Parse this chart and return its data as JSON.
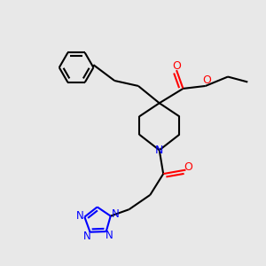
{
  "bg_color": "#e8e8e8",
  "bond_color": "#000000",
  "n_color": "#0000ff",
  "o_color": "#ff0000",
  "lw": 1.5,
  "figsize": [
    3.0,
    3.0
  ],
  "dpi": 100,
  "xlim": [
    0,
    10
  ],
  "ylim": [
    0,
    10
  ]
}
